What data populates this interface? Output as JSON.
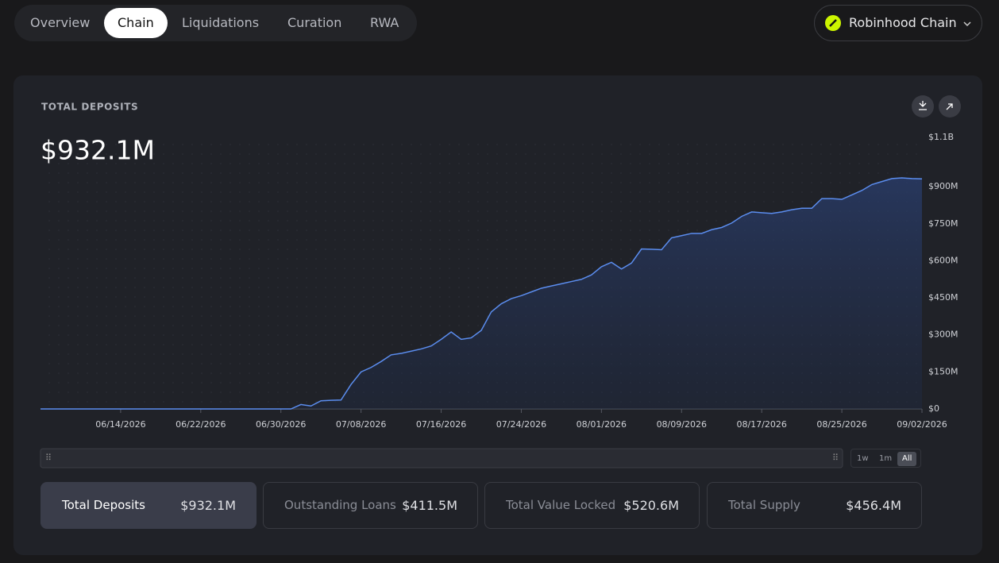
{
  "nav": {
    "tabs": [
      "Overview",
      "Chain",
      "Liquidations",
      "Curation",
      "RWA"
    ],
    "active": "Chain"
  },
  "selector": {
    "label": "Robinhood Chain"
  },
  "card": {
    "title": "TOTAL DEPOSITS",
    "value": "$932.1M",
    "ranges": [
      "1w",
      "1m",
      "All"
    ],
    "active_range": "All"
  },
  "chart_data": {
    "type": "area",
    "color": "#5b8def",
    "x": [
      "06/06/2026",
      "06/07/2026",
      "06/08/2026",
      "06/09/2026",
      "06/10/2026",
      "06/11/2026",
      "06/12/2026",
      "06/13/2026",
      "06/14/2026",
      "06/15/2026",
      "06/16/2026",
      "06/17/2026",
      "06/18/2026",
      "06/19/2026",
      "06/20/2026",
      "06/21/2026",
      "06/22/2026",
      "06/23/2026",
      "06/24/2026",
      "06/25/2026",
      "06/26/2026",
      "06/27/2026",
      "06/28/2026",
      "06/29/2026",
      "06/30/2026",
      "07/01/2026",
      "07/02/2026",
      "07/03/2026",
      "07/04/2026",
      "07/05/2026",
      "07/06/2026",
      "07/07/2026",
      "07/08/2026",
      "07/09/2026",
      "07/10/2026",
      "07/11/2026",
      "07/12/2026",
      "07/13/2026",
      "07/14/2026",
      "07/15/2026",
      "07/16/2026",
      "07/17/2026",
      "07/18/2026",
      "07/19/2026",
      "07/20/2026",
      "07/21/2026",
      "07/22/2026",
      "07/23/2026",
      "07/24/2026",
      "07/25/2026",
      "07/26/2026",
      "07/27/2026",
      "07/28/2026",
      "07/29/2026",
      "07/30/2026",
      "07/31/2026",
      "08/01/2026",
      "08/02/2026",
      "08/03/2026",
      "08/04/2026",
      "08/05/2026",
      "08/06/2026",
      "08/07/2026",
      "08/08/2026",
      "08/09/2026",
      "08/10/2026",
      "08/11/2026",
      "08/12/2026",
      "08/13/2026",
      "08/14/2026",
      "08/15/2026",
      "08/16/2026",
      "08/17/2026",
      "08/18/2026",
      "08/19/2026",
      "08/20/2026",
      "08/21/2026",
      "08/22/2026",
      "08/23/2026",
      "08/24/2026",
      "08/25/2026",
      "08/26/2026",
      "08/27/2026",
      "08/28/2026",
      "08/29/2026",
      "08/30/2026",
      "08/31/2026",
      "09/01/2026",
      "09/02/2026"
    ],
    "values": [
      0,
      0,
      0,
      0,
      0,
      0,
      0,
      0,
      0,
      0,
      0,
      0,
      0,
      0,
      0,
      0,
      0,
      0,
      0,
      0,
      0,
      0,
      0,
      0,
      0,
      0,
      18,
      12,
      33,
      35,
      36,
      99,
      150,
      168,
      192,
      219,
      225,
      234,
      243,
      255,
      282,
      312,
      282,
      288,
      318,
      393,
      426,
      447,
      459,
      474,
      489,
      498,
      507,
      516,
      525,
      543,
      576,
      594,
      567,
      591,
      648,
      647,
      645,
      693,
      702,
      711,
      711,
      726,
      735,
      753,
      780,
      798,
      795,
      792,
      798,
      807,
      813,
      813,
      852,
      852,
      849,
      867,
      885,
      909,
      921,
      933,
      936,
      933,
      932.1
    ],
    "xticks": [
      "06/14/2026",
      "06/22/2026",
      "06/30/2026",
      "07/08/2026",
      "07/16/2026",
      "07/24/2026",
      "08/01/2026",
      "08/09/2026",
      "08/17/2026",
      "08/25/2026",
      "09/02/2026"
    ],
    "ylim": [
      0,
      1100
    ],
    "yticks": [
      {
        "value": 0,
        "label": "$0"
      },
      {
        "value": 150,
        "label": "$150M"
      },
      {
        "value": 300,
        "label": "$300M"
      },
      {
        "value": 450,
        "label": "$450M"
      },
      {
        "value": 600,
        "label": "$600M"
      },
      {
        "value": 750,
        "label": "$750M"
      },
      {
        "value": 900,
        "label": "$900M"
      },
      {
        "value": 1100,
        "label": "$1.1B"
      }
    ]
  },
  "stats": [
    {
      "label": "Total Deposits",
      "value": "$932.1M"
    },
    {
      "label": "Outstanding Loans",
      "value": "$411.5M"
    },
    {
      "label": "Total Value Locked",
      "value": "$520.6M"
    },
    {
      "label": "Total Supply",
      "value": "$456.4M"
    }
  ]
}
